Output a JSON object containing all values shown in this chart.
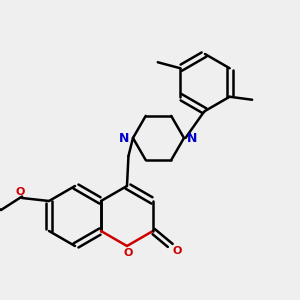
{
  "bg_color": "#efefef",
  "bond_color": "#000000",
  "nitrogen_color": "#0000cc",
  "oxygen_color": "#cc0000",
  "line_width": 1.8,
  "figsize": [
    3.0,
    3.0
  ],
  "dpi": 100,
  "xlim": [
    0,
    10
  ],
  "ylim": [
    0,
    10
  ]
}
